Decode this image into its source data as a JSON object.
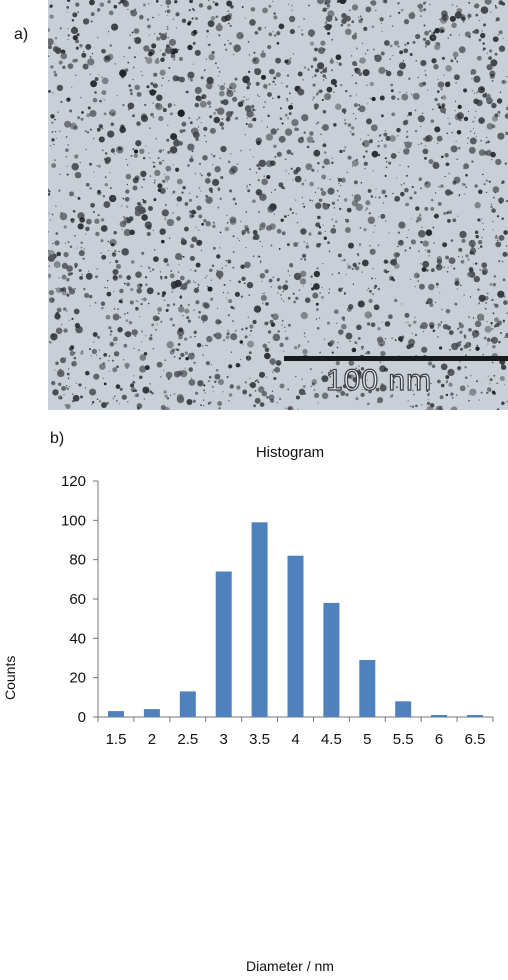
{
  "panel_a": {
    "label": "a)",
    "scale_bar_text": "100 nm"
  },
  "panel_b": {
    "label": "b)"
  },
  "chart_data": {
    "type": "bar",
    "title": "Histogram",
    "xlabel": "Diameter / nm",
    "ylabel": "Counts",
    "categories": [
      "1.5",
      "2",
      "2.5",
      "3",
      "3.5",
      "4",
      "4.5",
      "5",
      "5.5",
      "6",
      "6.5"
    ],
    "values": [
      3,
      4,
      13,
      74,
      99,
      82,
      58,
      29,
      8,
      1,
      1
    ],
    "ylim": [
      0,
      120
    ],
    "yticks": [
      "0",
      "20",
      "40",
      "60",
      "80",
      "100",
      "120"
    ],
    "grid": false,
    "legend": "none",
    "bar_color": "#4f81bd"
  }
}
